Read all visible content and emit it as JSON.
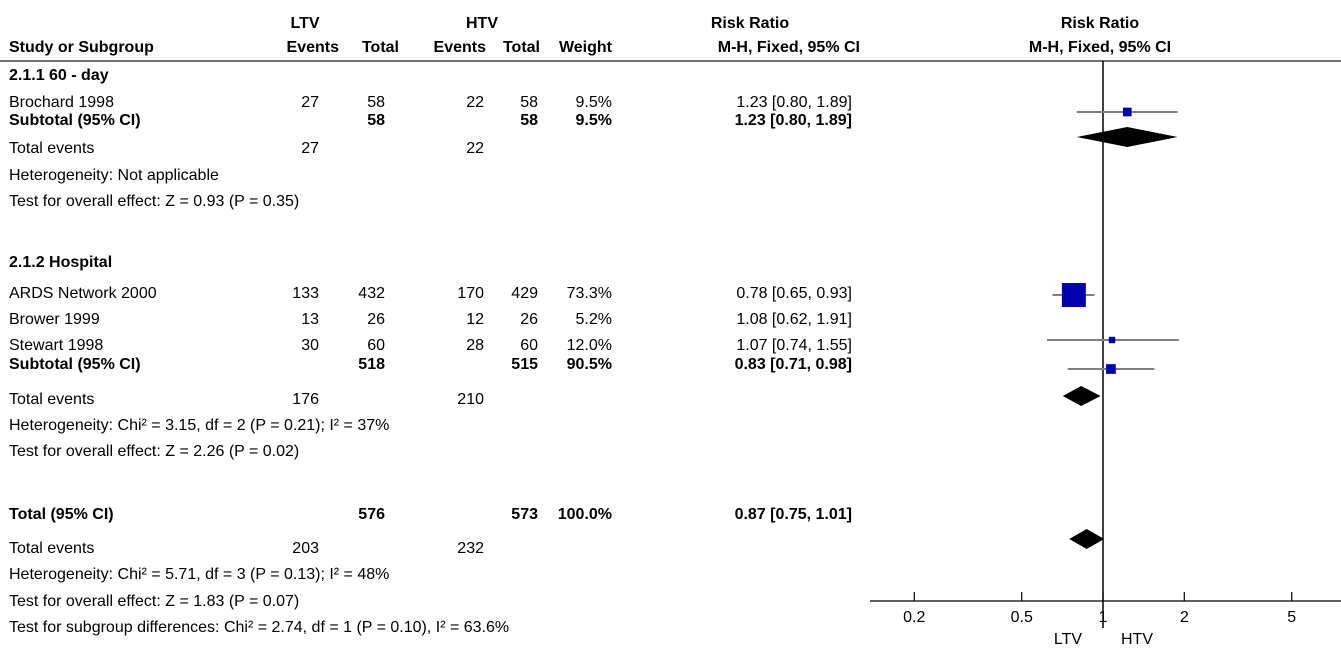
{
  "headers": {
    "group1": "LTV",
    "group2": "HTV",
    "effect_title": "Risk Ratio",
    "plot_title": "Risk Ratio",
    "study": "Study or Subgroup",
    "events1": "Events",
    "total1": "Total",
    "events2": "Events",
    "total2": "Total",
    "weight": "Weight",
    "method": "M-H, Fixed, 95% CI",
    "plot_method": "M-H, Fixed, 95% CI"
  },
  "subgroups": [
    {
      "title": "2.1.1 60 - day",
      "studies": [
        {
          "name": "Brochard 1998",
          "e1": "27",
          "t1": "58",
          "e2": "22",
          "t2": "58",
          "weight": "9.5%",
          "ci": "1.23 [0.80, 1.89]"
        }
      ],
      "subtotal": {
        "label": "Subtotal (95% CI)",
        "t1": "58",
        "t2": "58",
        "weight": "9.5%",
        "ci": "1.23 [0.80, 1.89]"
      },
      "events": {
        "label": "Total events",
        "e1": "27",
        "e2": "22"
      },
      "heterogeneity": "Heterogeneity: Not applicable",
      "overall": "Test for overall effect: Z = 0.93 (P = 0.35)"
    },
    {
      "title": "2.1.2 Hospital",
      "studies": [
        {
          "name": "ARDS Network 2000",
          "e1": "133",
          "t1": "432",
          "e2": "170",
          "t2": "429",
          "weight": "73.3%",
          "ci": "0.78 [0.65, 0.93]"
        },
        {
          "name": "Brower 1999",
          "e1": "13",
          "t1": "26",
          "e2": "12",
          "t2": "26",
          "weight": "5.2%",
          "ci": "1.08 [0.62, 1.91]"
        },
        {
          "name": "Stewart 1998",
          "e1": "30",
          "t1": "60",
          "e2": "28",
          "t2": "60",
          "weight": "12.0%",
          "ci": "1.07 [0.74, 1.55]"
        }
      ],
      "subtotal": {
        "label": "Subtotal (95% CI)",
        "t1": "518",
        "t2": "515",
        "weight": "90.5%",
        "ci": "0.83 [0.71, 0.98]"
      },
      "events": {
        "label": "Total events",
        "e1": "176",
        "e2": "210"
      },
      "heterogeneity": "Heterogeneity: Chi² = 3.15, df = 2 (P = 0.21); I² = 37%",
      "overall": "Test for overall effect: Z = 2.26 (P = 0.02)"
    }
  ],
  "total": {
    "label": "Total (95% CI)",
    "t1": "576",
    "t2": "573",
    "weight": "100.0%",
    "ci": "0.87 [0.75, 1.01]",
    "events": {
      "label": "Total events",
      "e1": "203",
      "e2": "232"
    },
    "heterogeneity": "Heterogeneity: Chi² = 5.71, df = 3 (P = 0.13); I² = 48%",
    "overall": "Test for overall effect: Z = 1.83 (P = 0.07)",
    "subgroup_diff": "Test for subgroup differences: Chi² = 2.74, df = 1 (P = 0.10), I² = 63.6%"
  },
  "axis": {
    "left_label": "LTV",
    "right_label": "HTV"
  },
  "colors": {
    "study_marker": "#0000b0",
    "ci_line": "#808080",
    "diamond": "#000000",
    "rule": "#6f6f6f"
  },
  "chart_data": {
    "type": "forest",
    "scale": "log",
    "xlim": [
      0.15,
      8
    ],
    "null_value": 1,
    "ticks": [
      0.2,
      0.5,
      1,
      2,
      5
    ],
    "tick_labels": [
      "0.2",
      "0.5",
      "1",
      "2",
      "5"
    ],
    "studies": [
      {
        "name": "Brochard 1998",
        "rr": 1.23,
        "lo": 0.8,
        "hi": 1.89,
        "weight": 9.5
      },
      {
        "name": "ARDS Network 2000",
        "rr": 0.78,
        "lo": 0.65,
        "hi": 0.93,
        "weight": 73.3
      },
      {
        "name": "Brower 1999",
        "rr": 1.08,
        "lo": 0.62,
        "hi": 1.91,
        "weight": 5.2
      },
      {
        "name": "Stewart 1998",
        "rr": 1.07,
        "lo": 0.74,
        "hi": 1.55,
        "weight": 12.0
      }
    ],
    "summaries": [
      {
        "name": "Subtotal 2.1.1 60 - day",
        "rr": 1.23,
        "lo": 0.8,
        "hi": 1.89
      },
      {
        "name": "Subtotal 2.1.2 Hospital",
        "rr": 0.83,
        "lo": 0.71,
        "hi": 0.98
      },
      {
        "name": "Total",
        "rr": 0.87,
        "lo": 0.75,
        "hi": 1.01
      }
    ]
  }
}
